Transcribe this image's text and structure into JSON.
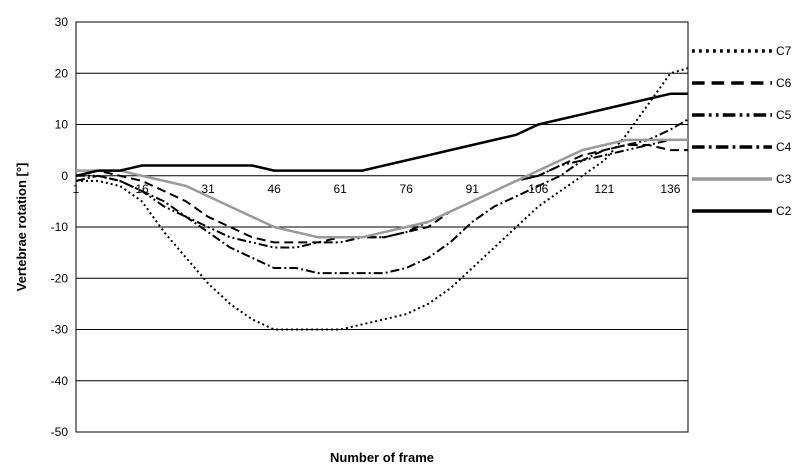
{
  "chart_data": {
    "type": "line",
    "title": "",
    "xlabel": "Number of frame",
    "ylabel": "Vertebrae rotation [°]",
    "x_ticks": [
      "1",
      "16",
      "31",
      "46",
      "61",
      "76",
      "91",
      "106",
      "121",
      "136"
    ],
    "y_ticks": [
      "30",
      "20",
      "10",
      "0",
      "-10",
      "-20",
      "-30",
      "-40",
      "-50"
    ],
    "xlim": [
      1,
      140
    ],
    "ylim": [
      -50,
      30
    ],
    "grid": "horizontal",
    "legend_position": "right",
    "x": [
      1,
      6,
      11,
      16,
      21,
      26,
      31,
      36,
      41,
      46,
      51,
      56,
      61,
      66,
      71,
      76,
      81,
      86,
      91,
      96,
      101,
      106,
      111,
      116,
      121,
      126,
      131,
      136,
      140
    ],
    "series": [
      {
        "name": "C7",
        "style": "dotted",
        "values": [
          -1,
          -1,
          -2,
          -5,
          -11,
          -16,
          -21,
          -25,
          -28,
          -30,
          -30,
          -30,
          -30,
          -29,
          -28,
          -27,
          -25,
          -22,
          -18,
          -14,
          -10,
          -6,
          -3,
          0,
          3,
          8,
          14,
          20,
          21
        ]
      },
      {
        "name": "C6",
        "style": "long-dash",
        "values": [
          1,
          1,
          0,
          -1,
          -3,
          -5,
          -8,
          -10,
          -12,
          -13,
          -13,
          -13,
          -12,
          -12,
          -12,
          -11,
          -10,
          -7,
          -5,
          -3,
          -1,
          0,
          2,
          4,
          5,
          6,
          6,
          5,
          5
        ]
      },
      {
        "name": "C5",
        "style": "dash-dot-dot",
        "values": [
          0,
          0,
          -1,
          -3,
          -6,
          -8,
          -10,
          -12,
          -13,
          -14,
          -14,
          -13,
          -13,
          -12,
          -12,
          -11,
          -9,
          -7,
          -5,
          -3,
          -1,
          0,
          2,
          3,
          4,
          5,
          6,
          7,
          7
        ]
      },
      {
        "name": "C4",
        "style": "dash-dot",
        "values": [
          -1,
          0,
          -1,
          -3,
          -5,
          -8,
          -11,
          -14,
          -16,
          -18,
          -18,
          -19,
          -19,
          -19,
          -19,
          -18,
          -16,
          -13,
          -9,
          -6,
          -4,
          -2,
          0,
          3,
          5,
          6,
          7,
          9,
          11
        ]
      },
      {
        "name": "C3",
        "style": "solid-gray",
        "values": [
          1,
          1,
          1,
          0,
          -1,
          -2,
          -4,
          -6,
          -8,
          -10,
          -11,
          -12,
          -12,
          -12,
          -11,
          -10,
          -9,
          -7,
          -5,
          -3,
          -1,
          1,
          3,
          5,
          6,
          7,
          7,
          7,
          7
        ]
      },
      {
        "name": "C2",
        "style": "solid-black",
        "values": [
          0,
          1,
          1,
          2,
          2,
          2,
          2,
          2,
          2,
          1,
          1,
          1,
          1,
          1,
          2,
          3,
          4,
          5,
          6,
          7,
          8,
          10,
          11,
          12,
          13,
          14,
          15,
          16,
          16
        ]
      }
    ]
  }
}
